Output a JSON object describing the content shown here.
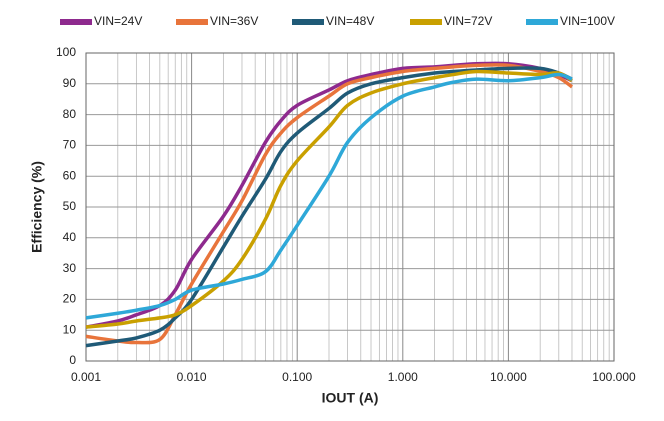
{
  "chart_data": {
    "type": "line",
    "xlabel": "IOUT (A)",
    "ylabel": "Efficiency (%)",
    "x": [
      0.001,
      0.002,
      0.003,
      0.005,
      0.007,
      0.01,
      0.02,
      0.03,
      0.05,
      0.07,
      0.1,
      0.2,
      0.3,
      0.5,
      1,
      2,
      3,
      5,
      10,
      20,
      30,
      40
    ],
    "series": [
      {
        "name": "VIN=24V",
        "color": "#8e2a8e",
        "values": [
          11,
          13,
          15,
          18,
          23,
          33,
          47,
          57,
          71,
          78,
          83,
          88,
          91,
          93,
          95,
          95.5,
          96,
          96.5,
          96.5,
          95,
          93,
          91
        ]
      },
      {
        "name": "VIN=36V",
        "color": "#e8743b",
        "values": [
          8,
          6.5,
          6,
          7,
          15,
          25,
          42,
          52,
          67,
          74,
          79,
          86,
          90,
          92,
          94,
          95,
          95.5,
          96,
          96,
          94,
          92,
          89
        ]
      },
      {
        "name": "VIN=48V",
        "color": "#1f5a77",
        "values": [
          5,
          6.5,
          7.5,
          10,
          14,
          20,
          37,
          47,
          59,
          68,
          74,
          82,
          87,
          90,
          92,
          93.5,
          94,
          94.5,
          95,
          95,
          93.5,
          91.5
        ]
      },
      {
        "name": "VIN=72V",
        "color": "#c9a000",
        "values": [
          11,
          12,
          13,
          14,
          15,
          18,
          26,
          33,
          46,
          57,
          65,
          76,
          83,
          87,
          90,
          92,
          93,
          94,
          93.5,
          93,
          93.5,
          91
        ]
      },
      {
        "name": "VIN=100V",
        "color": "#2ea8d8",
        "values": [
          14,
          15.5,
          16.5,
          18,
          20,
          23,
          25,
          26.5,
          29,
          36,
          44,
          60,
          71,
          79,
          86,
          89,
          90.5,
          91.5,
          91,
          92,
          93,
          91.5
        ]
      }
    ],
    "xscale": "log",
    "xlim": [
      0.001,
      100
    ],
    "xticks": [
      {
        "value": 0.001,
        "label": "0.001"
      },
      {
        "value": 0.01,
        "label": "0.010"
      },
      {
        "value": 0.1,
        "label": "0.100"
      },
      {
        "value": 1,
        "label": "1.000"
      },
      {
        "value": 10,
        "label": "10.000"
      },
      {
        "value": 100,
        "label": "100.000"
      }
    ],
    "ylim": [
      0,
      100
    ],
    "yticks": [
      0,
      10,
      20,
      30,
      40,
      50,
      60,
      70,
      80,
      90,
      100
    ],
    "grid": true
  }
}
